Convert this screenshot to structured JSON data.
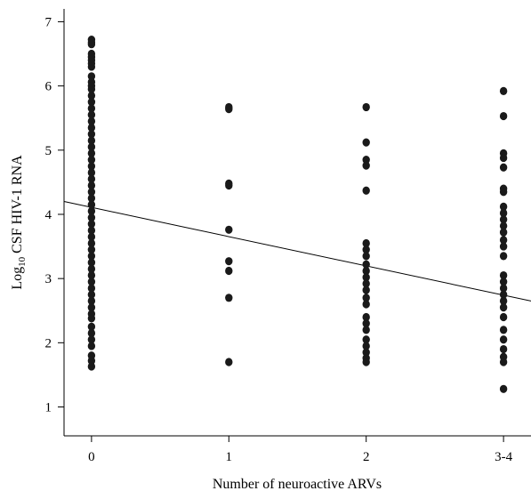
{
  "chart_data": {
    "type": "scatter",
    "xlabel": "Number of neuroactive ARVs",
    "ylabel_main": "Log",
    "ylabel_sub": "10",
    "ylabel_rest": " CSF HIV-1 RNA",
    "categories": [
      "0",
      "1",
      "2",
      "3-4"
    ],
    "y_ticks": [
      "1",
      "2",
      "3",
      "4",
      "5",
      "6",
      "7"
    ],
    "ylim": [
      0.55,
      7.2
    ],
    "point_color": "#1a1a1a",
    "line_color": "#000000",
    "regression_line": {
      "y_at_start": 4.2,
      "y_at_end": 2.65,
      "x_start": -0.2,
      "x_end": 3.2
    },
    "series": [
      {
        "values": [
          {
            "x": 0,
            "y": 6.72
          },
          {
            "x": 0,
            "y": 6.68
          },
          {
            "x": 0,
            "y": 6.65
          },
          {
            "x": 0,
            "y": 6.5
          },
          {
            "x": 0,
            "y": 6.45
          },
          {
            "x": 0,
            "y": 6.4
          },
          {
            "x": 0,
            "y": 6.35
          },
          {
            "x": 0,
            "y": 6.3
          },
          {
            "x": 0,
            "y": 6.15
          },
          {
            "x": 0,
            "y": 6.06
          },
          {
            "x": 0,
            "y": 6.0
          },
          {
            "x": 0,
            "y": 5.95
          },
          {
            "x": 0,
            "y": 5.85
          },
          {
            "x": 0,
            "y": 5.75
          },
          {
            "x": 0,
            "y": 5.65
          },
          {
            "x": 0,
            "y": 5.55
          },
          {
            "x": 0,
            "y": 5.45
          },
          {
            "x": 0,
            "y": 5.35
          },
          {
            "x": 0,
            "y": 5.25
          },
          {
            "x": 0,
            "y": 5.15
          },
          {
            "x": 0,
            "y": 5.05
          },
          {
            "x": 0,
            "y": 4.95
          },
          {
            "x": 0,
            "y": 4.85
          },
          {
            "x": 0,
            "y": 4.75
          },
          {
            "x": 0,
            "y": 4.65
          },
          {
            "x": 0,
            "y": 4.55
          },
          {
            "x": 0,
            "y": 4.45
          },
          {
            "x": 0,
            "y": 4.35
          },
          {
            "x": 0,
            "y": 4.25
          },
          {
            "x": 0,
            "y": 4.15
          },
          {
            "x": 0,
            "y": 4.05
          },
          {
            "x": 0,
            "y": 3.95
          },
          {
            "x": 0,
            "y": 3.85
          },
          {
            "x": 0,
            "y": 3.75
          },
          {
            "x": 0,
            "y": 3.65
          },
          {
            "x": 0,
            "y": 3.55
          },
          {
            "x": 0,
            "y": 3.45
          },
          {
            "x": 0,
            "y": 3.35
          },
          {
            "x": 0,
            "y": 3.25
          },
          {
            "x": 0,
            "y": 3.15
          },
          {
            "x": 0,
            "y": 3.05
          },
          {
            "x": 0,
            "y": 2.95
          },
          {
            "x": 0,
            "y": 2.85
          },
          {
            "x": 0,
            "y": 2.75
          },
          {
            "x": 0,
            "y": 2.65
          },
          {
            "x": 0,
            "y": 2.55
          },
          {
            "x": 0,
            "y": 2.45
          },
          {
            "x": 0,
            "y": 2.38
          },
          {
            "x": 0,
            "y": 2.25
          },
          {
            "x": 0,
            "y": 2.15
          },
          {
            "x": 0,
            "y": 2.05
          },
          {
            "x": 0,
            "y": 1.95
          },
          {
            "x": 0,
            "y": 1.8
          },
          {
            "x": 0,
            "y": 1.72
          },
          {
            "x": 0,
            "y": 1.63
          },
          {
            "x": 1,
            "y": 5.67
          },
          {
            "x": 1,
            "y": 5.64
          },
          {
            "x": 1,
            "y": 4.48
          },
          {
            "x": 1,
            "y": 4.45
          },
          {
            "x": 1,
            "y": 3.76
          },
          {
            "x": 1,
            "y": 3.27
          },
          {
            "x": 1,
            "y": 3.12
          },
          {
            "x": 1,
            "y": 2.7
          },
          {
            "x": 1,
            "y": 1.7
          },
          {
            "x": 2,
            "y": 5.67
          },
          {
            "x": 2,
            "y": 5.12
          },
          {
            "x": 2,
            "y": 4.85
          },
          {
            "x": 2,
            "y": 4.76
          },
          {
            "x": 2,
            "y": 4.37
          },
          {
            "x": 2,
            "y": 3.55
          },
          {
            "x": 2,
            "y": 3.45
          },
          {
            "x": 2,
            "y": 3.35
          },
          {
            "x": 2,
            "y": 3.22
          },
          {
            "x": 2,
            "y": 3.12
          },
          {
            "x": 2,
            "y": 3.02
          },
          {
            "x": 2,
            "y": 2.92
          },
          {
            "x": 2,
            "y": 2.82
          },
          {
            "x": 2,
            "y": 2.7
          },
          {
            "x": 2,
            "y": 2.6
          },
          {
            "x": 2,
            "y": 2.4
          },
          {
            "x": 2,
            "y": 2.3
          },
          {
            "x": 2,
            "y": 2.2
          },
          {
            "x": 2,
            "y": 2.05
          },
          {
            "x": 2,
            "y": 1.95
          },
          {
            "x": 2,
            "y": 1.85
          },
          {
            "x": 2,
            "y": 1.76
          },
          {
            "x": 2,
            "y": 1.7
          },
          {
            "x": 3,
            "y": 5.92
          },
          {
            "x": 3,
            "y": 5.53
          },
          {
            "x": 3,
            "y": 4.95
          },
          {
            "x": 3,
            "y": 4.88
          },
          {
            "x": 3,
            "y": 4.73
          },
          {
            "x": 3,
            "y": 4.4
          },
          {
            "x": 3,
            "y": 4.35
          },
          {
            "x": 3,
            "y": 4.12
          },
          {
            "x": 3,
            "y": 4.02
          },
          {
            "x": 3,
            "y": 3.92
          },
          {
            "x": 3,
            "y": 3.82
          },
          {
            "x": 3,
            "y": 3.72
          },
          {
            "x": 3,
            "y": 3.6
          },
          {
            "x": 3,
            "y": 3.5
          },
          {
            "x": 3,
            "y": 3.35
          },
          {
            "x": 3,
            "y": 3.05
          },
          {
            "x": 3,
            "y": 2.95
          },
          {
            "x": 3,
            "y": 2.85
          },
          {
            "x": 3,
            "y": 2.75
          },
          {
            "x": 3,
            "y": 2.65
          },
          {
            "x": 3,
            "y": 2.55
          },
          {
            "x": 3,
            "y": 2.4
          },
          {
            "x": 3,
            "y": 2.2
          },
          {
            "x": 3,
            "y": 2.05
          },
          {
            "x": 3,
            "y": 1.9
          },
          {
            "x": 3,
            "y": 1.78
          },
          {
            "x": 3,
            "y": 1.7
          },
          {
            "x": 3,
            "y": 1.28
          }
        ]
      }
    ]
  }
}
